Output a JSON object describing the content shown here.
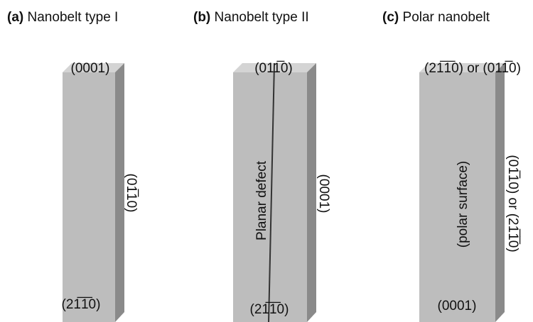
{
  "panels": [
    {
      "letter": "(a)",
      "title": "Nanobelt type I",
      "top_face": "(0001)",
      "side_face": "(01̅10)",
      "bottom_label": "(21̅1̅0)"
    },
    {
      "letter": "(b)",
      "title": "Nanobelt type II",
      "top_face": "(011̅0)",
      "defect_label": "Planar defect",
      "side_face": "(0001)",
      "bottom_label": "(21̅1̅0)"
    },
    {
      "letter": "(c)",
      "title": "Polar nanobelt",
      "top_face": "(21̅1̅0) or (011̅0)",
      "front_label": "(polar surface)",
      "side_face": "(01̅10) or (21̅1̅0)",
      "bottom_label": "(0001)"
    }
  ]
}
